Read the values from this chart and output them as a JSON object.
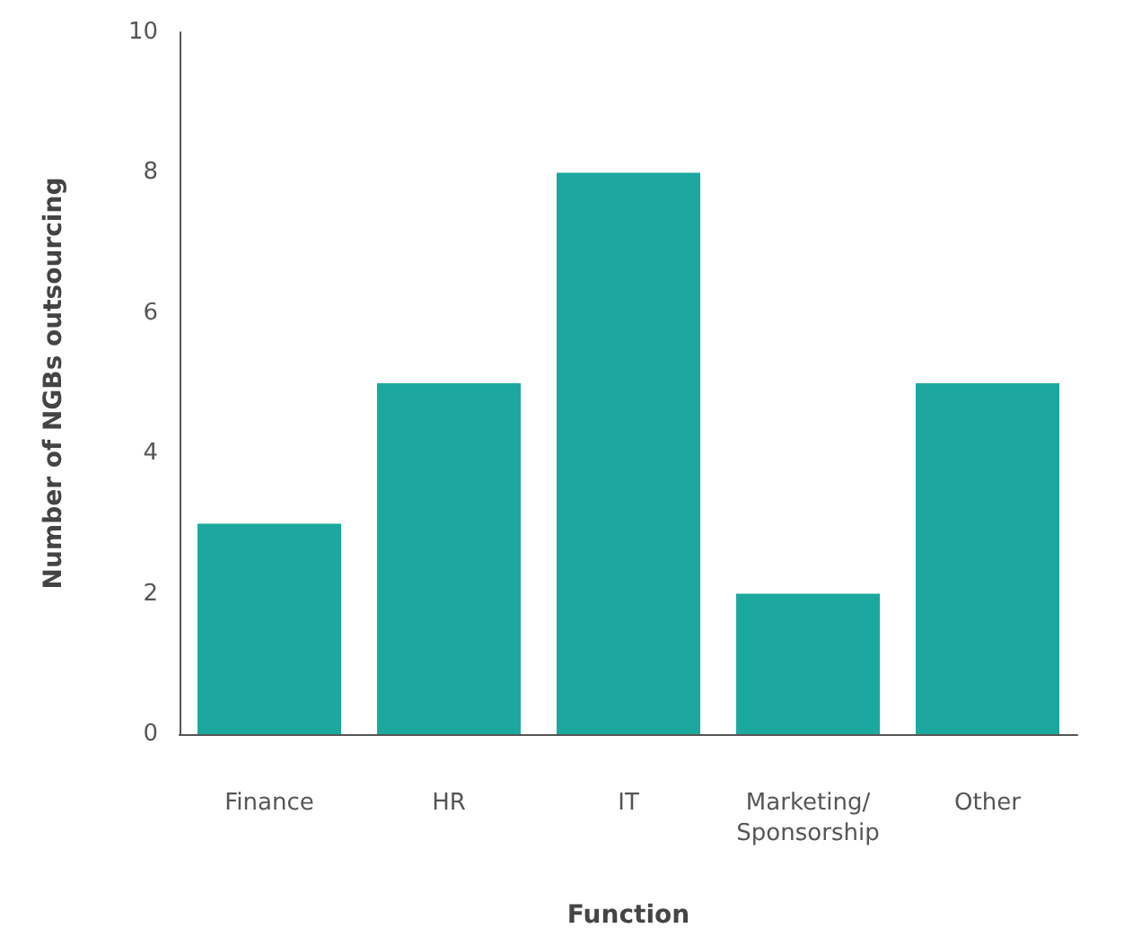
{
  "chart_data": {
    "type": "bar",
    "xlabel": "Function",
    "ylabel": "Number of NGBs outsourcing",
    "categories": [
      "Finance",
      "HR",
      "IT",
      "Marketing/Sponsorship",
      "Other"
    ],
    "values": [
      3,
      5,
      8,
      2,
      5
    ],
    "color": "#1ca89e",
    "ylim": [
      0,
      10
    ],
    "yticks": [
      0,
      2,
      4,
      6,
      8,
      10
    ],
    "grid": false
  }
}
